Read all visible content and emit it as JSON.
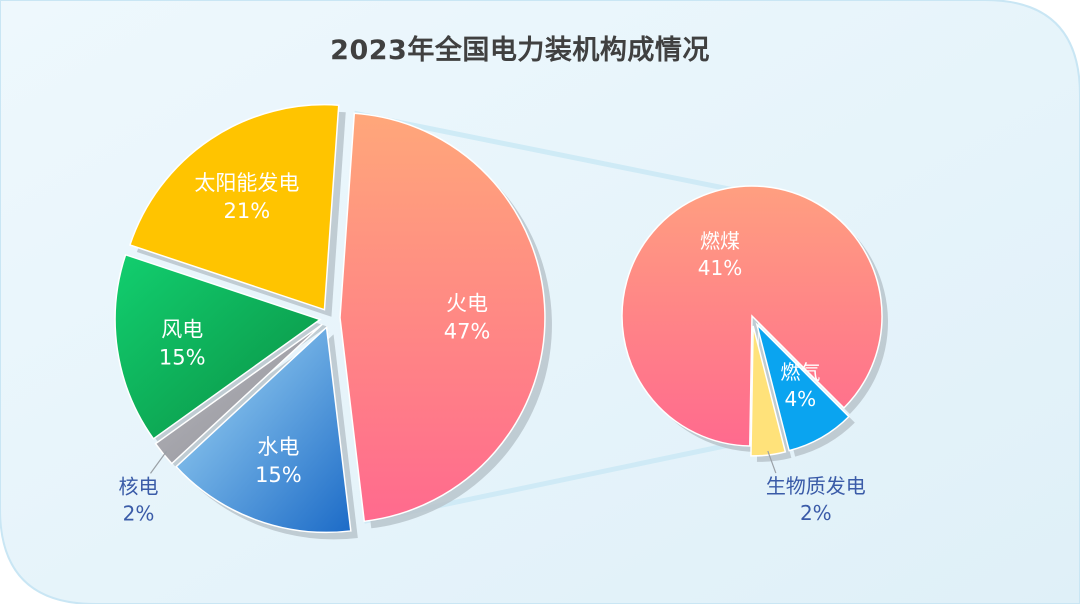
{
  "chart_data": {
    "type": "pie",
    "title": "2023年全国电力装机构成情况",
    "main_pie": {
      "slices": [
        {
          "name": "火电",
          "value": 47,
          "label": "47%",
          "color_start": "#ffa77a",
          "color_end": "#ff6a8e"
        },
        {
          "name": "水电",
          "value": 15,
          "label": "15%",
          "color_start": "#a7dcf7",
          "color_end": "#1c6bc7"
        },
        {
          "name": "核电",
          "value": 2,
          "label": "2%",
          "color_start": "#b9b9bf",
          "color_end": "#8f8f96"
        },
        {
          "name": "风电",
          "value": 15,
          "label": "15%",
          "color_start": "#12cf6f",
          "color_end": "#0a8f43"
        },
        {
          "name": "太阳能发电",
          "value": 21,
          "label": "21%",
          "color_start": "#ffc400",
          "color_end": "#ffc400"
        }
      ]
    },
    "sub_pie": {
      "parent": "火电",
      "slices": [
        {
          "name": "燃煤",
          "value": 41,
          "label": "41%",
          "color_start": "#ff9f80",
          "color_end": "#ff6a8e"
        },
        {
          "name": "燃气",
          "value": 4,
          "label": "4%",
          "color_start": "#0aa4f0",
          "color_end": "#0aa4f0"
        },
        {
          "name": "生物质发电",
          "value": 2,
          "label": "2%",
          "color_start": "#ffe27a",
          "color_end": "#ffe27a"
        }
      ]
    },
    "colors": {
      "panel_bg": "#e3f3fb",
      "panel_border": "#c9e6f4",
      "inside_label": "#ffffff",
      "outside_label": "#3a5ba8",
      "title": "#404040"
    }
  }
}
